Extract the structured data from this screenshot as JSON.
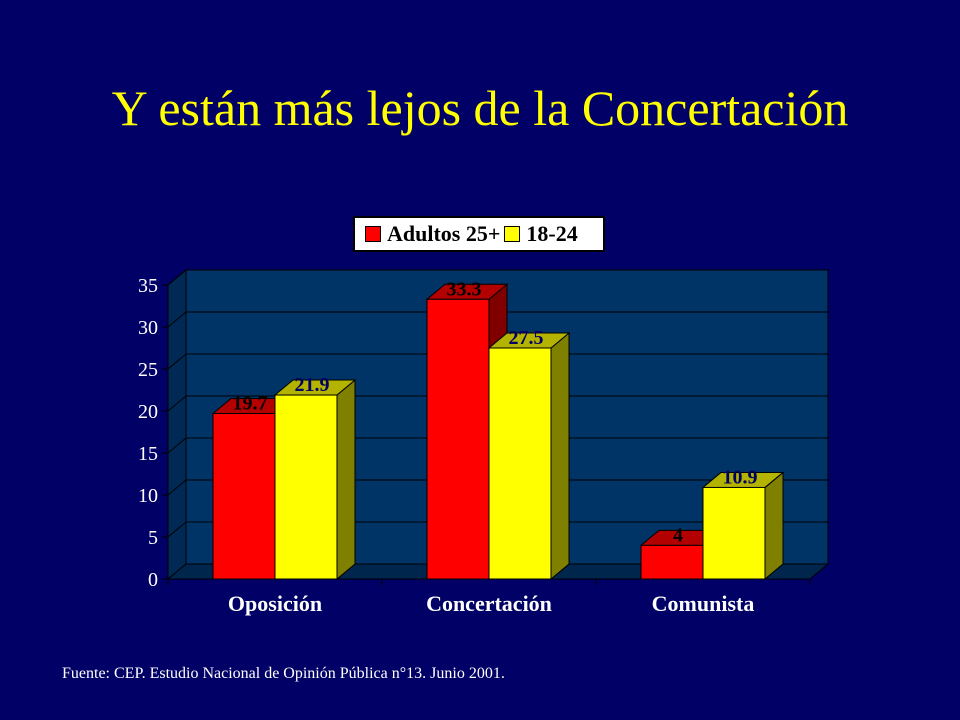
{
  "slide": {
    "title": "Y están más lejos de la Concertación",
    "source": "Fuente: CEP. Estudio Nacional de Opinión Pública n°13. Junio 2001."
  },
  "colors": {
    "background": "#000066",
    "title": "#FFFF00",
    "plot_area": "#003366",
    "series1": "#FF0000",
    "series2": "#FFFF00"
  },
  "chart_data": {
    "type": "bar",
    "categories": [
      "Oposición",
      "Concertación",
      "Comunista"
    ],
    "series": [
      {
        "name": "Adultos 25+",
        "values": [
          19.7,
          33.3,
          4
        ]
      },
      {
        "name": "18-24",
        "values": [
          21.9,
          27.5,
          10.9
        ]
      }
    ],
    "data_labels": [
      [
        "19.7",
        "33.3",
        "4"
      ],
      [
        "21.9",
        "27.5",
        "10.9"
      ]
    ],
    "ylim": [
      0,
      35
    ],
    "yticks": [
      "0",
      "5",
      "10",
      "15",
      "20",
      "25",
      "30",
      "35"
    ],
    "grid": true,
    "legend_position": "top"
  }
}
